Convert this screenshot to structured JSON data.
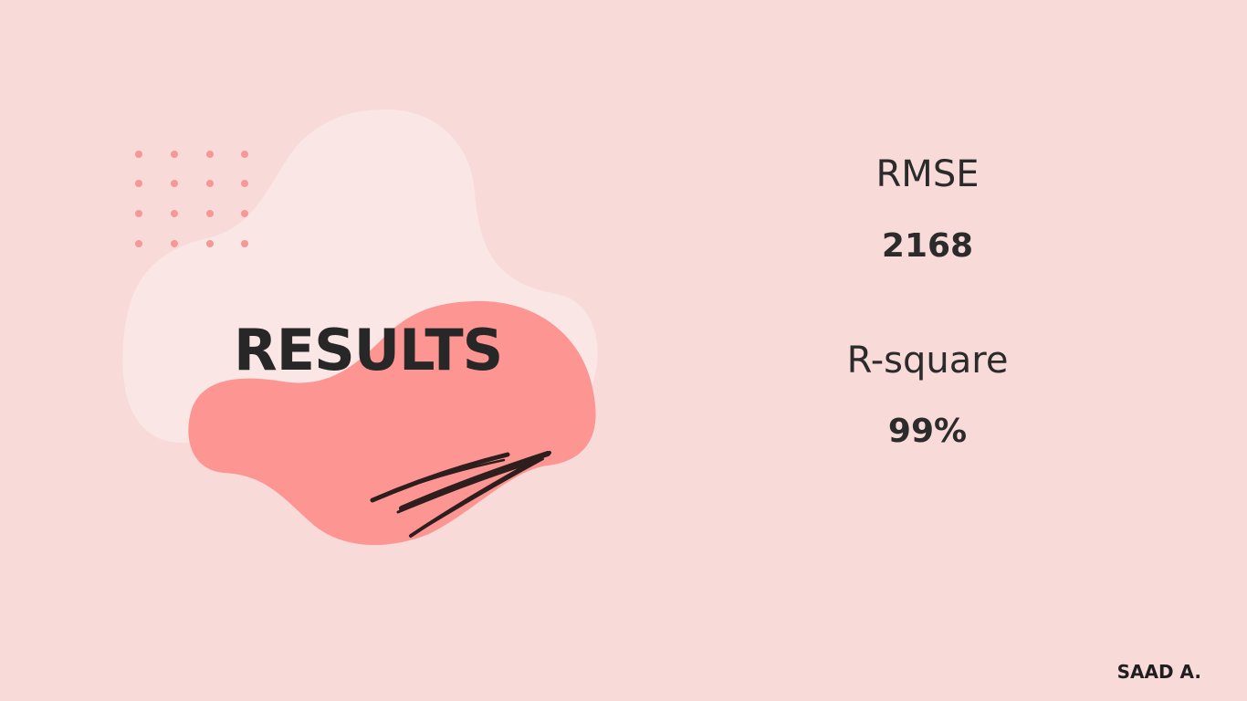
{
  "slide": {
    "title": "RESULTS",
    "metrics": [
      {
        "label": "RMSE",
        "value": "2168"
      },
      {
        "label": "R-square",
        "value": "99%"
      }
    ],
    "author": "SAAD A."
  },
  "colors": {
    "background": "#f8dad8",
    "light_blob": "#f9e6e5",
    "coral_blob": "#fd9593",
    "dots": "#f59896",
    "scribble": "#2e1e1e",
    "text": "#272727"
  },
  "icons": [
    "dot-grid-decoration",
    "scribble-decoration"
  ]
}
